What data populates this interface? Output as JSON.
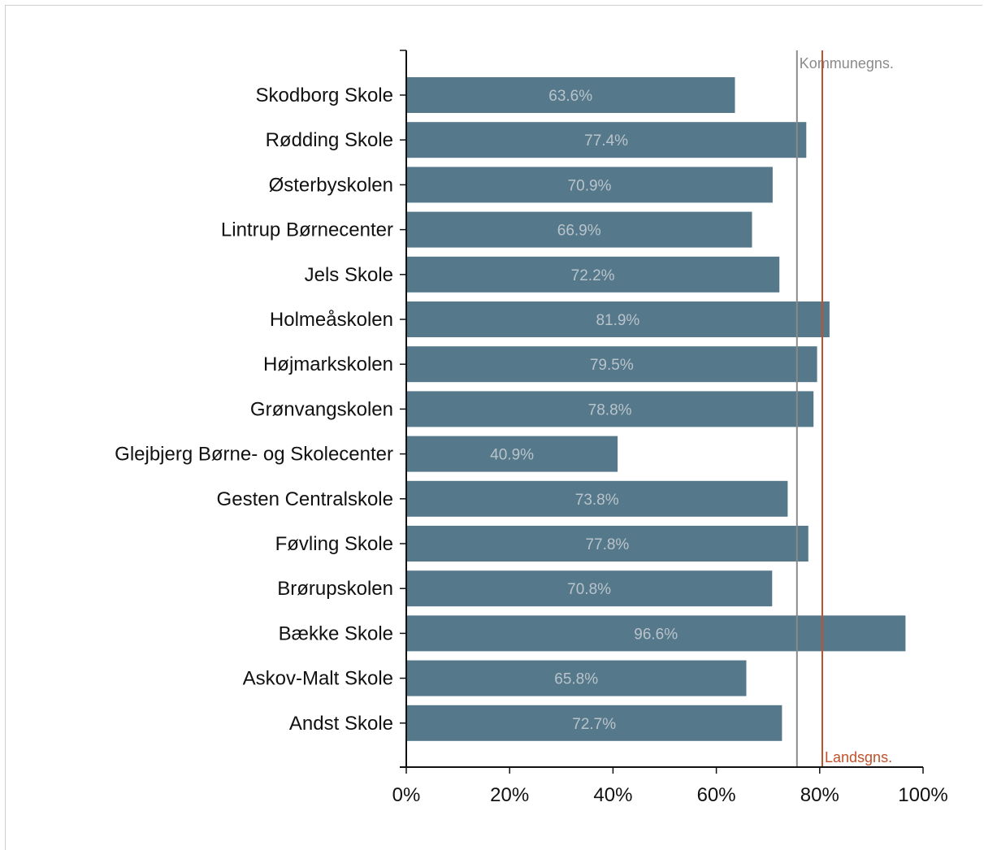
{
  "chart_data": {
    "type": "bar",
    "orientation": "horizontal",
    "categories": [
      "Skodborg Skole",
      "Rødding Skole",
      "Østerbyskolen",
      "Lintrup Børnecenter",
      "Jels Skole",
      "Holmeåskolen",
      "Højmarkskolen",
      "Grønvangskolen",
      "Glejbjerg Børne- og Skolecenter",
      "Gesten Centralskole",
      "Føvling Skole",
      "Brørupskolen",
      "Bække Skole",
      "Askov-Malt Skole",
      "Andst Skole"
    ],
    "values": [
      63.6,
      77.4,
      70.9,
      66.9,
      72.2,
      81.9,
      79.5,
      78.8,
      40.9,
      73.8,
      77.8,
      70.8,
      96.6,
      65.8,
      72.7
    ],
    "data_labels": [
      "63.6%",
      "77.4%",
      "70.9%",
      "66.9%",
      "72.2%",
      "81.9%",
      "79.5%",
      "78.8%",
      "40.9%",
      "73.8%",
      "77.8%",
      "70.8%",
      "96.6%",
      "65.8%",
      "72.7%"
    ],
    "xlim": [
      0,
      100
    ],
    "x_ticks": [
      0,
      20,
      40,
      60,
      80,
      100
    ],
    "x_tick_labels": [
      "0%",
      "20%",
      "40%",
      "60%",
      "80%",
      "100%"
    ],
    "bar_color": "#55798b",
    "reference_lines": [
      {
        "label": "Kommunegns.",
        "value": 75.6,
        "color": "#8a8a8a"
      },
      {
        "label": "Landsgns.",
        "value": 80.5,
        "color": "#c0522b"
      }
    ],
    "grid": false,
    "title": "",
    "xlabel": "",
    "ylabel": ""
  }
}
